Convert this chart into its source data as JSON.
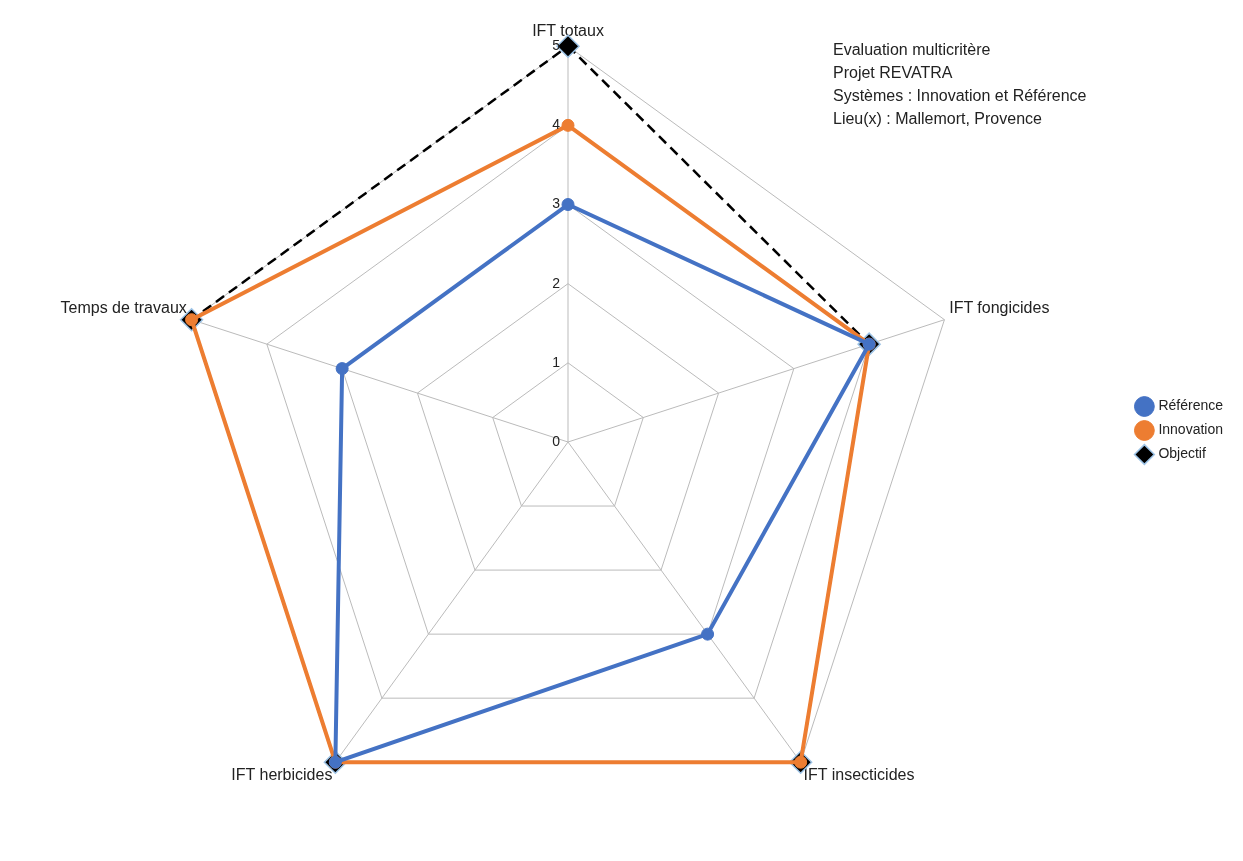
{
  "chart_data": {
    "type": "radar",
    "categories": [
      "IFT totaux",
      "IFT fongicides",
      "IFT insecticides",
      "IFT herbicides",
      "Temps de travaux"
    ],
    "series": [
      {
        "name": "Référence",
        "color": "#4472c4",
        "values": [
          3,
          4,
          3,
          5,
          3
        ],
        "marker": "circle",
        "line_style": "solid"
      },
      {
        "name": "Innovation",
        "color": "#ed7d31",
        "values": [
          4,
          4,
          5,
          5,
          5
        ],
        "marker": "circle",
        "line_style": "solid"
      },
      {
        "name": "Objectif",
        "color": "#000000",
        "values": [
          5,
          4,
          5,
          5,
          5
        ],
        "marker": "diamond",
        "line_style": "dashed"
      }
    ],
    "ylim": [
      0,
      5
    ],
    "yticks": [
      0,
      1,
      2,
      3,
      4,
      5
    ],
    "grid": true,
    "legend": "right",
    "annotations": [
      "Evaluation multicritère",
      "Projet REVATRA",
      "Systèmes : Innovation et Référence",
      "Lieu(x) : Mallemort, Provence"
    ]
  }
}
